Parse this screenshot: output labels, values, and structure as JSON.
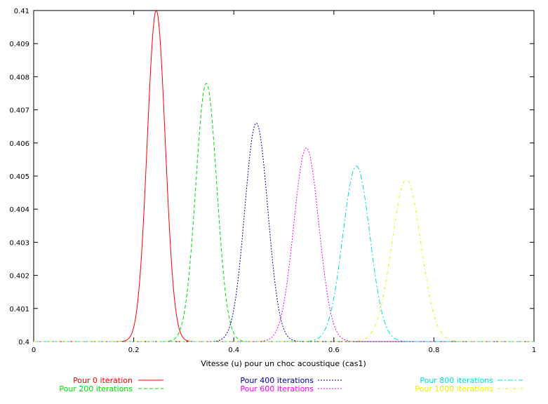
{
  "chart_data": {
    "type": "line",
    "title": "",
    "xlabel": "Vitesse (u) pour un choc acoustique (cas1)",
    "ylabel": "",
    "xlim": [
      0,
      1
    ],
    "ylim": [
      0.4,
      0.41
    ],
    "x_ticks": [
      "0",
      "0.2",
      "0.4",
      "0.6",
      "0.8",
      "1"
    ],
    "y_ticks": [
      "0.4",
      "0.401",
      "0.402",
      "0.403",
      "0.404",
      "0.405",
      "0.406",
      "0.407",
      "0.408",
      "0.409",
      "0.41"
    ],
    "grid": false,
    "legend_position": "bottom",
    "series": [
      {
        "name": "Pour 0 iteration",
        "color": "#ff0000",
        "dash": "solid",
        "center": 0.245,
        "peak": 0.41,
        "width": 0.018
      },
      {
        "name": "Pour 200 iterations",
        "color": "#00dd00",
        "dash": "dashed",
        "center": 0.345,
        "peak": 0.4078,
        "width": 0.021
      },
      {
        "name": "Pour 400 iterations",
        "color": "#0000a0",
        "dash": "dotted",
        "center": 0.445,
        "peak": 0.4066,
        "width": 0.023
      },
      {
        "name": "Pour 600 iterations",
        "color": "#ff00ff",
        "dash": "dotted",
        "center": 0.545,
        "peak": 0.40585,
        "width": 0.025
      },
      {
        "name": "Pour 800 iterations",
        "color": "#00dddd",
        "dash": "dashdot",
        "center": 0.645,
        "peak": 0.4053,
        "width": 0.027
      },
      {
        "name": "Pour 1000 iterations",
        "color": "#eeee00",
        "dash": "dashdot2",
        "center": 0.745,
        "peak": 0.4049,
        "width": 0.029
      }
    ]
  }
}
